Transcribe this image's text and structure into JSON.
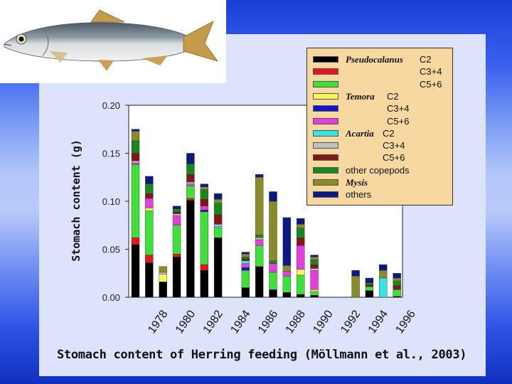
{
  "caption": "Stomach content of Herring feeding (Möllmann et al., 2003)",
  "chart_data": {
    "type": "bar",
    "stacked": true,
    "ylabel": "Stomach content (g)",
    "ylim": [
      0,
      0.2
    ],
    "yticks": [
      "0.00",
      "0.05",
      "0.10",
      "0.15",
      "0.20"
    ],
    "xtick_labels": [
      "1978",
      "1980",
      "1982",
      "1984",
      "1986",
      "1988",
      "1990",
      "1992",
      "1994",
      "1996"
    ],
    "categories": [
      "1977",
      "1978",
      "1979",
      "1980",
      "1981",
      "1982",
      "1983",
      "1984",
      "1985",
      "1986",
      "1987",
      "1988",
      "1989",
      "1990",
      "1991",
      "1992",
      "1993",
      "1994",
      "1995",
      "1996"
    ],
    "legend_position": "top-right",
    "series": [
      {
        "name": "Pseudocalanus C2",
        "color": "#000000",
        "values": [
          0.055,
          0.036,
          0.016,
          0.042,
          0.101,
          0.028,
          0.062,
          0,
          0.01,
          0.032,
          0.008,
          0.005,
          0.003,
          0.002,
          0,
          0,
          0,
          0.007,
          0,
          0.001
        ]
      },
      {
        "name": "C3+4",
        "color": "#e8141b",
        "values": [
          0.007,
          0.008,
          0,
          0.003,
          0.002,
          0.006,
          0,
          0,
          0,
          0,
          0,
          0,
          0,
          0,
          0,
          0,
          0,
          0,
          0,
          0
        ]
      },
      {
        "name": "C5+6",
        "color": "#3ee03a",
        "values": [
          0.076,
          0.046,
          0,
          0.03,
          0.013,
          0.055,
          0.01,
          0,
          0.018,
          0.022,
          0.018,
          0.017,
          0.02,
          0.004,
          0,
          0,
          0,
          0.004,
          0,
          0.007
        ]
      },
      {
        "name": "Temora C2",
        "color": "#f6f65a",
        "values": [
          0,
          0.003,
          0.008,
          0,
          0,
          0,
          0,
          0,
          0,
          0,
          0,
          0,
          0.006,
          0.002,
          0,
          0,
          0,
          0,
          0,
          0
        ]
      },
      {
        "name": "C3+4",
        "color": "#1414c8",
        "values": [
          0,
          0,
          0,
          0,
          0,
          0.002,
          0,
          0,
          0.003,
          0,
          0,
          0,
          0,
          0,
          0,
          0,
          0,
          0,
          0,
          0
        ]
      },
      {
        "name": "C5+6",
        "color": "#e43ee0",
        "values": [
          0.002,
          0.01,
          0,
          0.01,
          0.002,
          0.004,
          0,
          0,
          0.004,
          0.006,
          0.009,
          0.005,
          0.025,
          0.02,
          0,
          0,
          0,
          0,
          0,
          0
        ]
      },
      {
        "name": "Acartia C2",
        "color": "#38e3e3",
        "values": [
          0,
          0,
          0,
          0,
          0,
          0,
          0.002,
          0,
          0.003,
          0,
          0,
          0,
          0,
          0,
          0,
          0,
          0,
          0,
          0.02,
          0
        ]
      },
      {
        "name": "C3+4",
        "color": "#c0c0c0",
        "values": [
          0.002,
          0,
          0.002,
          0.002,
          0.002,
          0,
          0.002,
          0,
          0,
          0.002,
          0,
          0,
          0,
          0.002,
          0,
          0,
          0,
          0,
          0,
          0
        ]
      },
      {
        "name": "C5+6",
        "color": "#801818",
        "values": [
          0.008,
          0.005,
          0,
          0.002,
          0.008,
          0.007,
          0.01,
          0,
          0.002,
          0,
          0,
          0,
          0.008,
          0.004,
          0,
          0,
          0,
          0.002,
          0,
          0.004
        ]
      },
      {
        "name": "other copepods",
        "color": "#17871e",
        "values": [
          0.013,
          0.01,
          0,
          0.003,
          0.011,
          0.01,
          0.012,
          0,
          0.002,
          0.003,
          0.003,
          0,
          0.01,
          0.005,
          0,
          0,
          0,
          0.002,
          0,
          0.005
        ]
      },
      {
        "name": "Mysis",
        "color": "#8a8c2a",
        "values": [
          0.01,
          0,
          0.006,
          0,
          0,
          0.003,
          0.004,
          0,
          0.003,
          0.06,
          0.062,
          0.006,
          0.004,
          0.003,
          0,
          0,
          0.022,
          0,
          0.008,
          0.003
        ]
      },
      {
        "name": "others",
        "color": "#0a1a80",
        "values": [
          0.002,
          0.008,
          0,
          0.003,
          0.011,
          0.003,
          0.006,
          0,
          0.002,
          0.003,
          0.01,
          0.05,
          0.006,
          0.002,
          0,
          0,
          0.006,
          0.005,
          0.006,
          0.005
        ]
      }
    ]
  },
  "legend": [
    {
      "species": "Pseudocalanus",
      "stage": "C2"
    },
    {
      "species": "",
      "stage": "C3+4"
    },
    {
      "species": "",
      "stage": "C5+6"
    },
    {
      "species": "Temora",
      "stage": "C2"
    },
    {
      "species": "",
      "stage": "C3+4"
    },
    {
      "species": "",
      "stage": "C5+6"
    },
    {
      "species": "Acartia",
      "stage": "C2"
    },
    {
      "species": "",
      "stage": "C3+4"
    },
    {
      "species": "",
      "stage": "C5+6"
    },
    {
      "species": "",
      "stage": "other copepods"
    },
    {
      "species": "Mysis",
      "stage": ""
    },
    {
      "species": "",
      "stage": "others"
    }
  ],
  "icons": {
    "fish": "herring-fish-illustration"
  }
}
